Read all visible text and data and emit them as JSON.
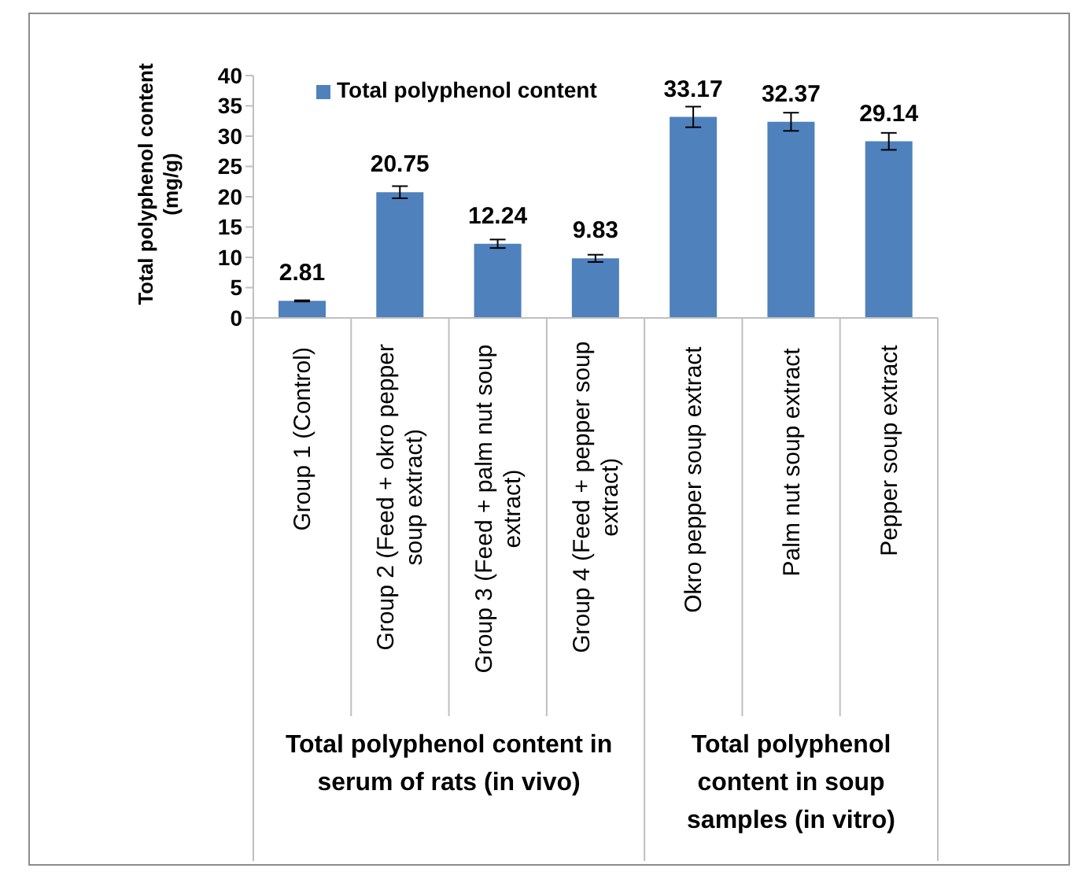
{
  "chart_data": {
    "type": "bar",
    "ylabel": "Total polyphenol content (mg/g)",
    "categories": [
      "Group 1 (Control)",
      "Group 2 (Feed + okro pepper soup extract)",
      "Group 3 (Feed + palm nut soup extract)",
      "Group 4 (Feed + pepper soup extract)",
      "Okro pepper soup extract",
      "Palm nut soup extract",
      "Pepper soup extract"
    ],
    "series": [
      {
        "name": "Total polyphenol content",
        "color": "#4f81bd",
        "values": [
          2.81,
          20.75,
          12.24,
          9.83,
          33.17,
          32.37,
          29.14
        ],
        "errors": [
          0.1,
          1.0,
          0.7,
          0.6,
          1.7,
          1.5,
          1.4
        ]
      }
    ],
    "ylim": [
      0,
      40
    ],
    "yticks": [
      0,
      5,
      10,
      15,
      20,
      25,
      30,
      35,
      40
    ],
    "data_labels": true,
    "legend": "top left",
    "grid": false,
    "annotations": [
      "Total  polyphenol content in serum of rats (in vivo)",
      "Total  polyphenol content in soup samples (in vitro)"
    ]
  }
}
